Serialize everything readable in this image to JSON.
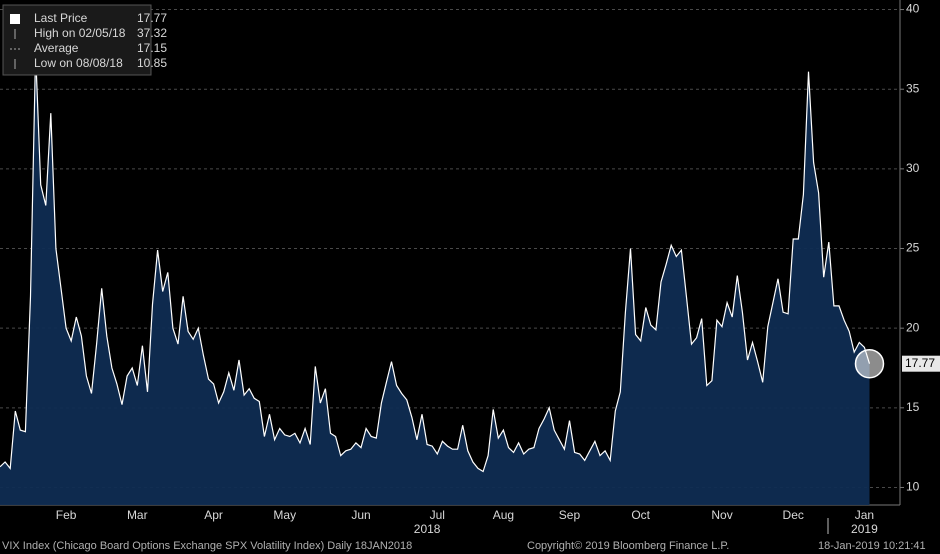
{
  "chart_data": {
    "type": "area",
    "legend": {
      "items": [
        {
          "label": "Last Price",
          "value": 17.77
        },
        {
          "label": "High on 02/05/18",
          "value": 37.32
        },
        {
          "label": "Average",
          "value": 17.15
        },
        {
          "label": "Low on 08/08/18",
          "value": 10.85
        }
      ]
    },
    "series": [
      {
        "color": "#ffffff",
        "fill": "#0f2c52",
        "values": [
          11.3,
          11.6,
          11.2,
          14.8,
          13.6,
          13.5,
          22,
          37.32,
          29,
          27.7,
          33.5,
          25,
          22.5,
          20,
          19.2,
          20.7,
          19.5,
          17.0,
          15.9,
          19.0,
          22.5,
          19.5,
          17.5,
          16.5,
          15.2,
          17,
          17.5,
          16.4,
          18.9,
          16,
          21.5,
          24.9,
          22.3,
          23.5,
          20,
          19,
          22,
          19.8,
          19.3,
          20,
          18.3,
          16.8,
          16.5,
          15.3,
          16.0,
          17.2,
          16.1,
          18.0,
          15.8,
          16.2,
          15.6,
          15.4,
          13.2,
          14.6,
          13.0,
          13.7,
          13.3,
          13.2,
          13.4,
          12.8,
          13.7,
          12.7,
          17.6,
          15.3,
          16.2,
          13.4,
          13.2,
          12.0,
          12.3,
          12.4,
          12.8,
          12.5,
          13.7,
          13.2,
          13.1,
          15.3,
          16.6,
          17.9,
          16.4,
          15.9,
          15.5,
          14.4,
          13.0,
          14.6,
          12.7,
          12.6,
          12.1,
          12.9,
          12.6,
          12.4,
          12.4,
          13.9,
          12.3,
          11.6,
          11.2,
          11.0,
          12.0,
          14.9,
          13.1,
          13.6,
          12.5,
          12.2,
          12.8,
          12.1,
          12.4,
          12.5,
          13.7,
          14.3,
          15.0,
          13.6,
          13.0,
          12.4,
          14.2,
          12.2,
          12.1,
          11.7,
          12.3,
          12.9,
          12.0,
          12.3,
          11.7,
          14.8,
          16.0,
          21.0,
          25.0,
          19.6,
          19.2,
          21.3,
          20.2,
          19.9,
          22.9,
          24.0,
          25.2,
          24.5,
          24.9,
          22.0,
          19.0,
          19.4,
          20.6,
          16.4,
          16.7,
          20.5,
          20.1,
          21.6,
          20.7,
          23.3,
          21.0,
          18.0,
          19.1,
          17.9,
          16.6,
          20.1,
          21.6,
          23.1,
          21.0,
          20.9,
          25.6,
          25.6,
          28.4,
          36.1,
          30.4,
          28.5,
          23.2,
          25.4,
          21.4,
          21.4,
          20.5,
          19.8,
          18.5,
          19.1,
          18.8,
          17.77
        ]
      }
    ],
    "xlim": [
      0,
      177
    ],
    "xticks": [
      {
        "value": 13,
        "label": "Feb"
      },
      {
        "value": 27,
        "label": "Mar"
      },
      {
        "value": 42,
        "label": "Apr"
      },
      {
        "value": 56,
        "label": "May"
      },
      {
        "value": 71,
        "label": "Jun"
      },
      {
        "value": 86,
        "label": "Jul"
      },
      {
        "value": 99,
        "label": "Aug"
      },
      {
        "value": 112,
        "label": "Sep"
      },
      {
        "value": 126,
        "label": "Oct"
      },
      {
        "value": 142,
        "label": "Nov"
      },
      {
        "value": 156,
        "label": "Dec"
      },
      {
        "value": 170,
        "label": "Jan"
      }
    ],
    "year_labels": [
      {
        "value": 84,
        "label": "2018"
      },
      {
        "value": 170,
        "label": "2019"
      }
    ],
    "ylim": [
      8.9,
      40.6
    ],
    "yticks": [
      10,
      15,
      20,
      25,
      30,
      35,
      40
    ],
    "grid": true,
    "footer": {
      "left": "VIX Index (Chicago Board Options Exchange SPX Volatility Index)  Daily 18JAN2018",
      "center": "Copyright© 2019 Bloomberg Finance L.P.",
      "right": "18-Jan-2019 10:21:41"
    }
  }
}
